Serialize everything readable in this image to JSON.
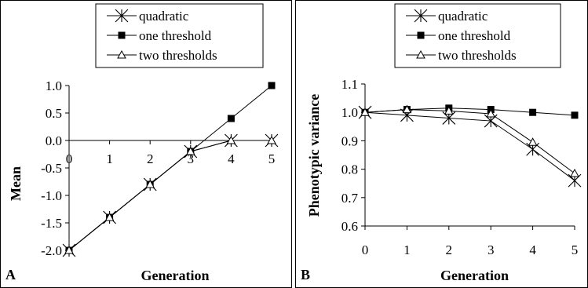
{
  "chart_data": [
    {
      "type": "line",
      "panel_label": "A",
      "xlabel": "Generation",
      "ylabel": "Mean",
      "x": [
        0,
        1,
        2,
        3,
        4,
        5
      ],
      "x_tick_labels": [
        "0",
        "1",
        "2",
        "3",
        "4",
        "5"
      ],
      "ylim": [
        -2.0,
        1.0
      ],
      "y_ticks": [
        -2.0,
        -1.5,
        -1.0,
        -0.5,
        0.0,
        0.5,
        1.0
      ],
      "y_tick_labels": [
        "-2.0",
        "-1.5",
        "-1.0",
        "-0.5",
        "0.0",
        "0.5",
        "1.0"
      ],
      "x_axis_at_y": 0.0,
      "grid": false,
      "legend_position": "top",
      "series": [
        {
          "name": "quadratic",
          "marker": "asterisk",
          "values": [
            -2.0,
            -1.4,
            -0.8,
            -0.2,
            0.0,
            0.0
          ]
        },
        {
          "name": "one threshold",
          "marker": "filled-square",
          "values": [
            -2.0,
            -1.4,
            -0.8,
            -0.2,
            0.4,
            1.0
          ]
        },
        {
          "name": "two thresholds",
          "marker": "open-triangle",
          "values": [
            -2.0,
            -1.4,
            -0.8,
            -0.2,
            0.0,
            0.0
          ]
        }
      ]
    },
    {
      "type": "line",
      "panel_label": "B",
      "xlabel": "Generation",
      "ylabel": "Phenotypic variance",
      "x": [
        0,
        1,
        2,
        3,
        4,
        5
      ],
      "x_tick_labels": [
        "0",
        "1",
        "2",
        "3",
        "4",
        "5"
      ],
      "ylim": [
        0.6,
        1.1
      ],
      "y_ticks": [
        0.6,
        0.7,
        0.8,
        0.9,
        1.0,
        1.1
      ],
      "y_tick_labels": [
        "0.6",
        "0.7",
        "0.8",
        "0.9",
        "1.0",
        "1.1"
      ],
      "grid": false,
      "legend_position": "top",
      "series": [
        {
          "name": "quadratic",
          "marker": "asterisk",
          "values": [
            1.0,
            0.99,
            0.98,
            0.97,
            0.87,
            0.76
          ]
        },
        {
          "name": "one threshold",
          "marker": "filled-square",
          "values": [
            1.0,
            1.01,
            1.015,
            1.01,
            1.0,
            0.99
          ]
        },
        {
          "name": "two thresholds",
          "marker": "open-triangle",
          "values": [
            1.0,
            1.01,
            1.005,
            0.995,
            0.895,
            0.785
          ]
        }
      ]
    }
  ]
}
